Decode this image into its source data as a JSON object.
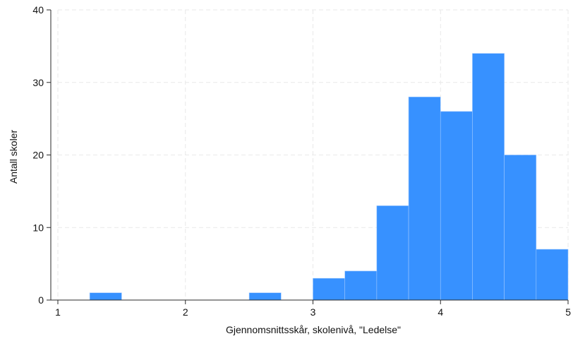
{
  "chart_data": {
    "type": "bar",
    "subtype": "histogram",
    "xlabel": "Gjennomsnittsskår, skolenivå, \"Ledelse\"",
    "ylabel": "Antall skoler",
    "xlim": [
      1,
      5
    ],
    "ylim": [
      0,
      40
    ],
    "x_ticks": [
      1,
      2,
      3,
      4,
      5
    ],
    "y_ticks": [
      0,
      10,
      20,
      30,
      40
    ],
    "grid": true,
    "bar_color": "#3791ff",
    "bins": [
      {
        "x0": 1.25,
        "x1": 1.5,
        "value": 1
      },
      {
        "x0": 1.5,
        "x1": 1.75,
        "value": 0
      },
      {
        "x0": 1.75,
        "x1": 2.0,
        "value": 0
      },
      {
        "x0": 2.0,
        "x1": 2.25,
        "value": 0
      },
      {
        "x0": 2.25,
        "x1": 2.5,
        "value": 0
      },
      {
        "x0": 2.5,
        "x1": 2.75,
        "value": 1
      },
      {
        "x0": 2.75,
        "x1": 3.0,
        "value": 0
      },
      {
        "x0": 3.0,
        "x1": 3.25,
        "value": 3
      },
      {
        "x0": 3.25,
        "x1": 3.5,
        "value": 4
      },
      {
        "x0": 3.5,
        "x1": 3.75,
        "value": 13
      },
      {
        "x0": 3.75,
        "x1": 4.0,
        "value": 28
      },
      {
        "x0": 4.0,
        "x1": 4.25,
        "value": 26
      },
      {
        "x0": 4.25,
        "x1": 4.5,
        "value": 34
      },
      {
        "x0": 4.5,
        "x1": 4.75,
        "value": 20
      },
      {
        "x0": 4.75,
        "x1": 5.0,
        "value": 7
      }
    ]
  }
}
